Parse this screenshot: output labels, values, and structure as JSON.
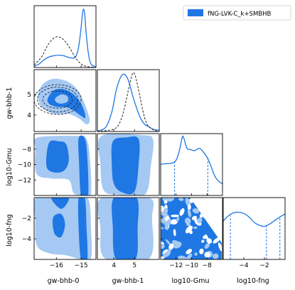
{
  "chart_data": {
    "type": "corner",
    "legend": {
      "label": "fNG-LVK-C_k+SMBHB",
      "position": "top-right",
      "color": "#1f77e4"
    },
    "colors": {
      "fill_dark": "#1f77e4",
      "fill_light": "#a5c9f3",
      "fill_pale": "#d9e8fa",
      "ref_line": "#222222"
    },
    "parameters": [
      {
        "name": "gw-bhb-0",
        "ticks": [
          -16,
          -15
        ],
        "tick_labels": [
          "−16",
          "−15"
        ],
        "range": [
          -16.9,
          -14.4
        ]
      },
      {
        "name": "gw-bhb-1",
        "ticks": [
          4,
          5
        ],
        "tick_labels": [
          "4",
          "5"
        ],
        "range": [
          3.2,
          6.2
        ]
      },
      {
        "name": "log10-Gmu",
        "ticks": [
          -12,
          -10,
          -8
        ],
        "tick_labels": [
          "−12",
          "−10",
          "−8"
        ],
        "range": [
          -14,
          -6
        ]
      },
      {
        "name": "log10-fng",
        "ticks": [
          -4,
          -2
        ],
        "tick_labels": [
          "−4",
          "−2"
        ],
        "range": [
          -6,
          0
        ]
      }
    ],
    "row_ticks": {
      "gw-bhb-1": {
        "ticks": [
          4,
          5
        ],
        "tick_labels": [
          "4",
          "5"
        ]
      },
      "log10-Gmu": {
        "ticks": [
          -8,
          -10,
          -12
        ],
        "tick_labels": [
          "−8",
          "−10",
          "−12"
        ]
      },
      "log10-fng": {
        "ticks": [
          -2,
          -4
        ],
        "tick_labels": [
          "−2",
          "−4"
        ]
      }
    },
    "marginals": {
      "gw-bhb-0": {
        "posterior": [
          [
            -16.9,
            0.02
          ],
          [
            -16.7,
            0.06
          ],
          [
            -16.5,
            0.13
          ],
          [
            -16.3,
            0.18
          ],
          [
            -16.1,
            0.2
          ],
          [
            -15.9,
            0.21
          ],
          [
            -15.7,
            0.2
          ],
          [
            -15.5,
            0.17
          ],
          [
            -15.3,
            0.16
          ],
          [
            -15.2,
            0.2
          ],
          [
            -15.1,
            0.35
          ],
          [
            -15.0,
            0.68
          ],
          [
            -14.95,
            0.9
          ],
          [
            -14.9,
            0.99
          ],
          [
            -14.85,
            0.88
          ],
          [
            -14.8,
            0.6
          ],
          [
            -14.7,
            0.22
          ],
          [
            -14.6,
            0.06
          ],
          [
            -14.4,
            0.01
          ]
        ],
        "reference": [
          [
            -16.9,
            0.04
          ],
          [
            -16.6,
            0.18
          ],
          [
            -16.4,
            0.34
          ],
          [
            -16.2,
            0.46
          ],
          [
            -16.0,
            0.52
          ],
          [
            -15.8,
            0.5
          ],
          [
            -15.6,
            0.42
          ],
          [
            -15.4,
            0.29
          ],
          [
            -15.2,
            0.15
          ],
          [
            -15.0,
            0.06
          ],
          [
            -14.8,
            0.02
          ],
          [
            -14.4,
            0.0
          ]
        ]
      },
      "gw-bhb-1": {
        "posterior": [
          [
            3.2,
            0.01
          ],
          [
            3.6,
            0.07
          ],
          [
            3.9,
            0.33
          ],
          [
            4.1,
            0.68
          ],
          [
            4.3,
            0.9
          ],
          [
            4.45,
            0.97
          ],
          [
            4.6,
            0.94
          ],
          [
            4.75,
            0.82
          ],
          [
            4.9,
            0.62
          ],
          [
            5.1,
            0.4
          ],
          [
            5.3,
            0.22
          ],
          [
            5.5,
            0.12
          ],
          [
            5.7,
            0.08
          ],
          [
            5.9,
            0.04
          ],
          [
            6.2,
            0.02
          ]
        ],
        "reference": [
          [
            3.2,
            0.0
          ],
          [
            4.0,
            0.04
          ],
          [
            4.3,
            0.16
          ],
          [
            4.5,
            0.38
          ],
          [
            4.7,
            0.7
          ],
          [
            4.85,
            0.92
          ],
          [
            4.95,
            1.0
          ],
          [
            5.05,
            0.93
          ],
          [
            5.2,
            0.7
          ],
          [
            5.4,
            0.36
          ],
          [
            5.6,
            0.13
          ],
          [
            5.9,
            0.03
          ],
          [
            6.2,
            0.0
          ]
        ]
      },
      "log10-Gmu": {
        "posterior": [
          [
            -14,
            0.53
          ],
          [
            -12.5,
            0.55
          ],
          [
            -12,
            0.6
          ],
          [
            -11.6,
            0.75
          ],
          [
            -11.2,
            0.99
          ],
          [
            -11.0,
            0.97
          ],
          [
            -10.6,
            0.8
          ],
          [
            -10.2,
            0.78
          ],
          [
            -9.6,
            0.76
          ],
          [
            -9.0,
            0.8
          ],
          [
            -8.5,
            0.74
          ],
          [
            -8.0,
            0.65
          ],
          [
            -7.5,
            0.5
          ],
          [
            -7.0,
            0.33
          ],
          [
            -6.5,
            0.24
          ],
          [
            -6.0,
            0.2
          ]
        ],
        "interval_lines": [
          -12.2,
          -7.9
        ]
      },
      "log10-fng": {
        "posterior": [
          [
            -6,
            0.65
          ],
          [
            -5.5,
            0.74
          ],
          [
            -5,
            0.79
          ],
          [
            -4.5,
            0.8
          ],
          [
            -4,
            0.78
          ],
          [
            -3.5,
            0.72
          ],
          [
            -3,
            0.63
          ],
          [
            -2.5,
            0.58
          ],
          [
            -2,
            0.56
          ],
          [
            -1.5,
            0.6
          ],
          [
            -1,
            0.66
          ],
          [
            -0.5,
            0.72
          ],
          [
            0,
            0.77
          ]
        ],
        "interval_lines": [
          -5.3,
          -1.8,
          -0.5
        ]
      }
    },
    "reference_ellipses": {
      "center": [
        -15.95,
        4.75
      ],
      "radii": [
        [
          0.6,
          0.42
        ],
        [
          0.82,
          0.6
        ],
        [
          0.95,
          0.72
        ]
      ]
    }
  }
}
